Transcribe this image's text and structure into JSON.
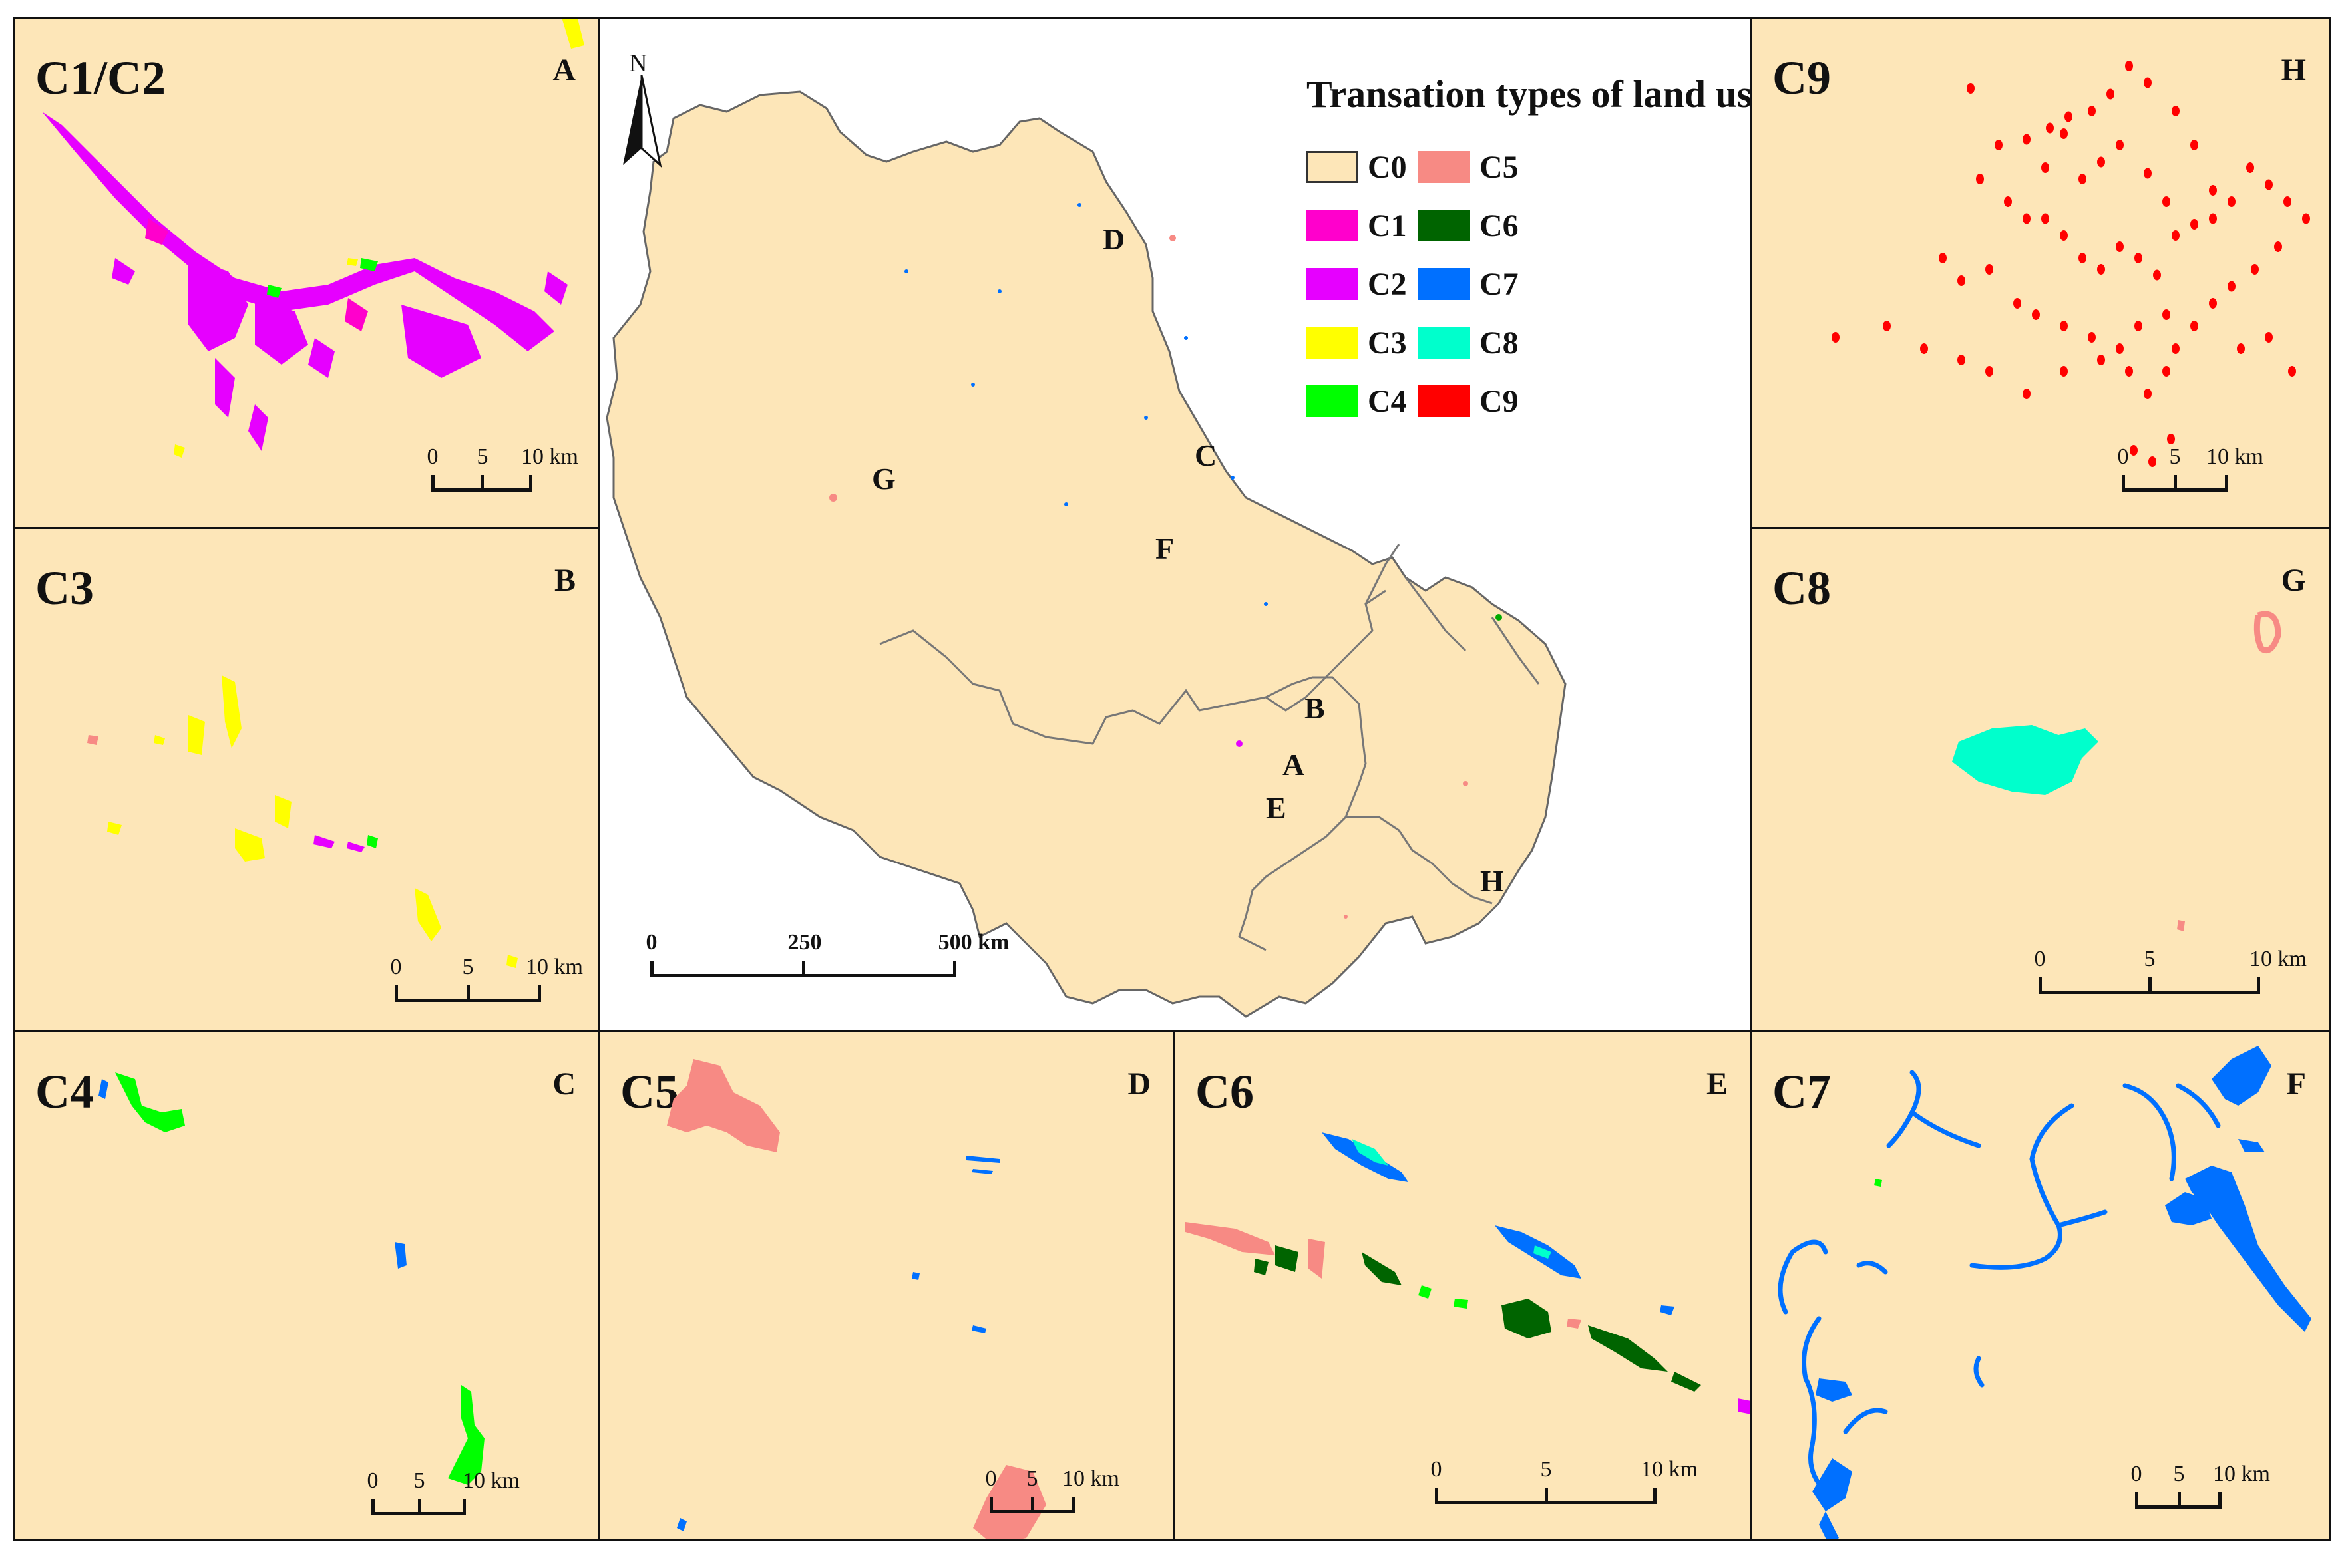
{
  "legend": {
    "title": "Transation types of land use",
    "items": [
      {
        "code": "C0",
        "color": "#fde6b8"
      },
      {
        "code": "C1",
        "color": "#ff00cc"
      },
      {
        "code": "C2",
        "color": "#e600ff"
      },
      {
        "code": "C3",
        "color": "#ffff00"
      },
      {
        "code": "C4",
        "color": "#00ff00"
      },
      {
        "code": "C5",
        "color": "#f78a84"
      },
      {
        "code": "C6",
        "color": "#006400"
      },
      {
        "code": "C7",
        "color": "#0070ff"
      },
      {
        "code": "C8",
        "color": "#00ffcc"
      },
      {
        "code": "C9",
        "color": "#ff0000"
      }
    ]
  },
  "north_arrow": {
    "label": "N"
  },
  "main_map": {
    "scale": {
      "labels": [
        "0",
        "250",
        "500 km"
      ]
    },
    "site_labels": [
      "D",
      "G",
      "C",
      "F",
      "B",
      "A",
      "E",
      "H"
    ]
  },
  "panels": {
    "p1": {
      "title": "C1/C2",
      "letter": "A",
      "scale": [
        "0",
        "5",
        "10 km"
      ]
    },
    "p2": {
      "title": "C3",
      "letter": "B",
      "scale": [
        "0",
        "5",
        "10 km"
      ]
    },
    "p3": {
      "title": "C4",
      "letter": "C",
      "scale": [
        "0",
        "5",
        "10 km"
      ]
    },
    "p4": {
      "title": "C5",
      "letter": "D",
      "scale": [
        "0",
        "5",
        "10 km"
      ]
    },
    "p5": {
      "title": "C6",
      "letter": "E",
      "scale": [
        "0",
        "5",
        "10 km"
      ]
    },
    "p6": {
      "title": "C7",
      "letter": "F",
      "scale": [
        "0",
        "5",
        "10 km"
      ]
    },
    "p7": {
      "title": "C9",
      "letter": "H",
      "scale": [
        "0",
        "5",
        "10 km"
      ]
    },
    "p8": {
      "title": "C8",
      "letter": "G",
      "scale": [
        "0",
        "5",
        "10 km"
      ]
    }
  }
}
